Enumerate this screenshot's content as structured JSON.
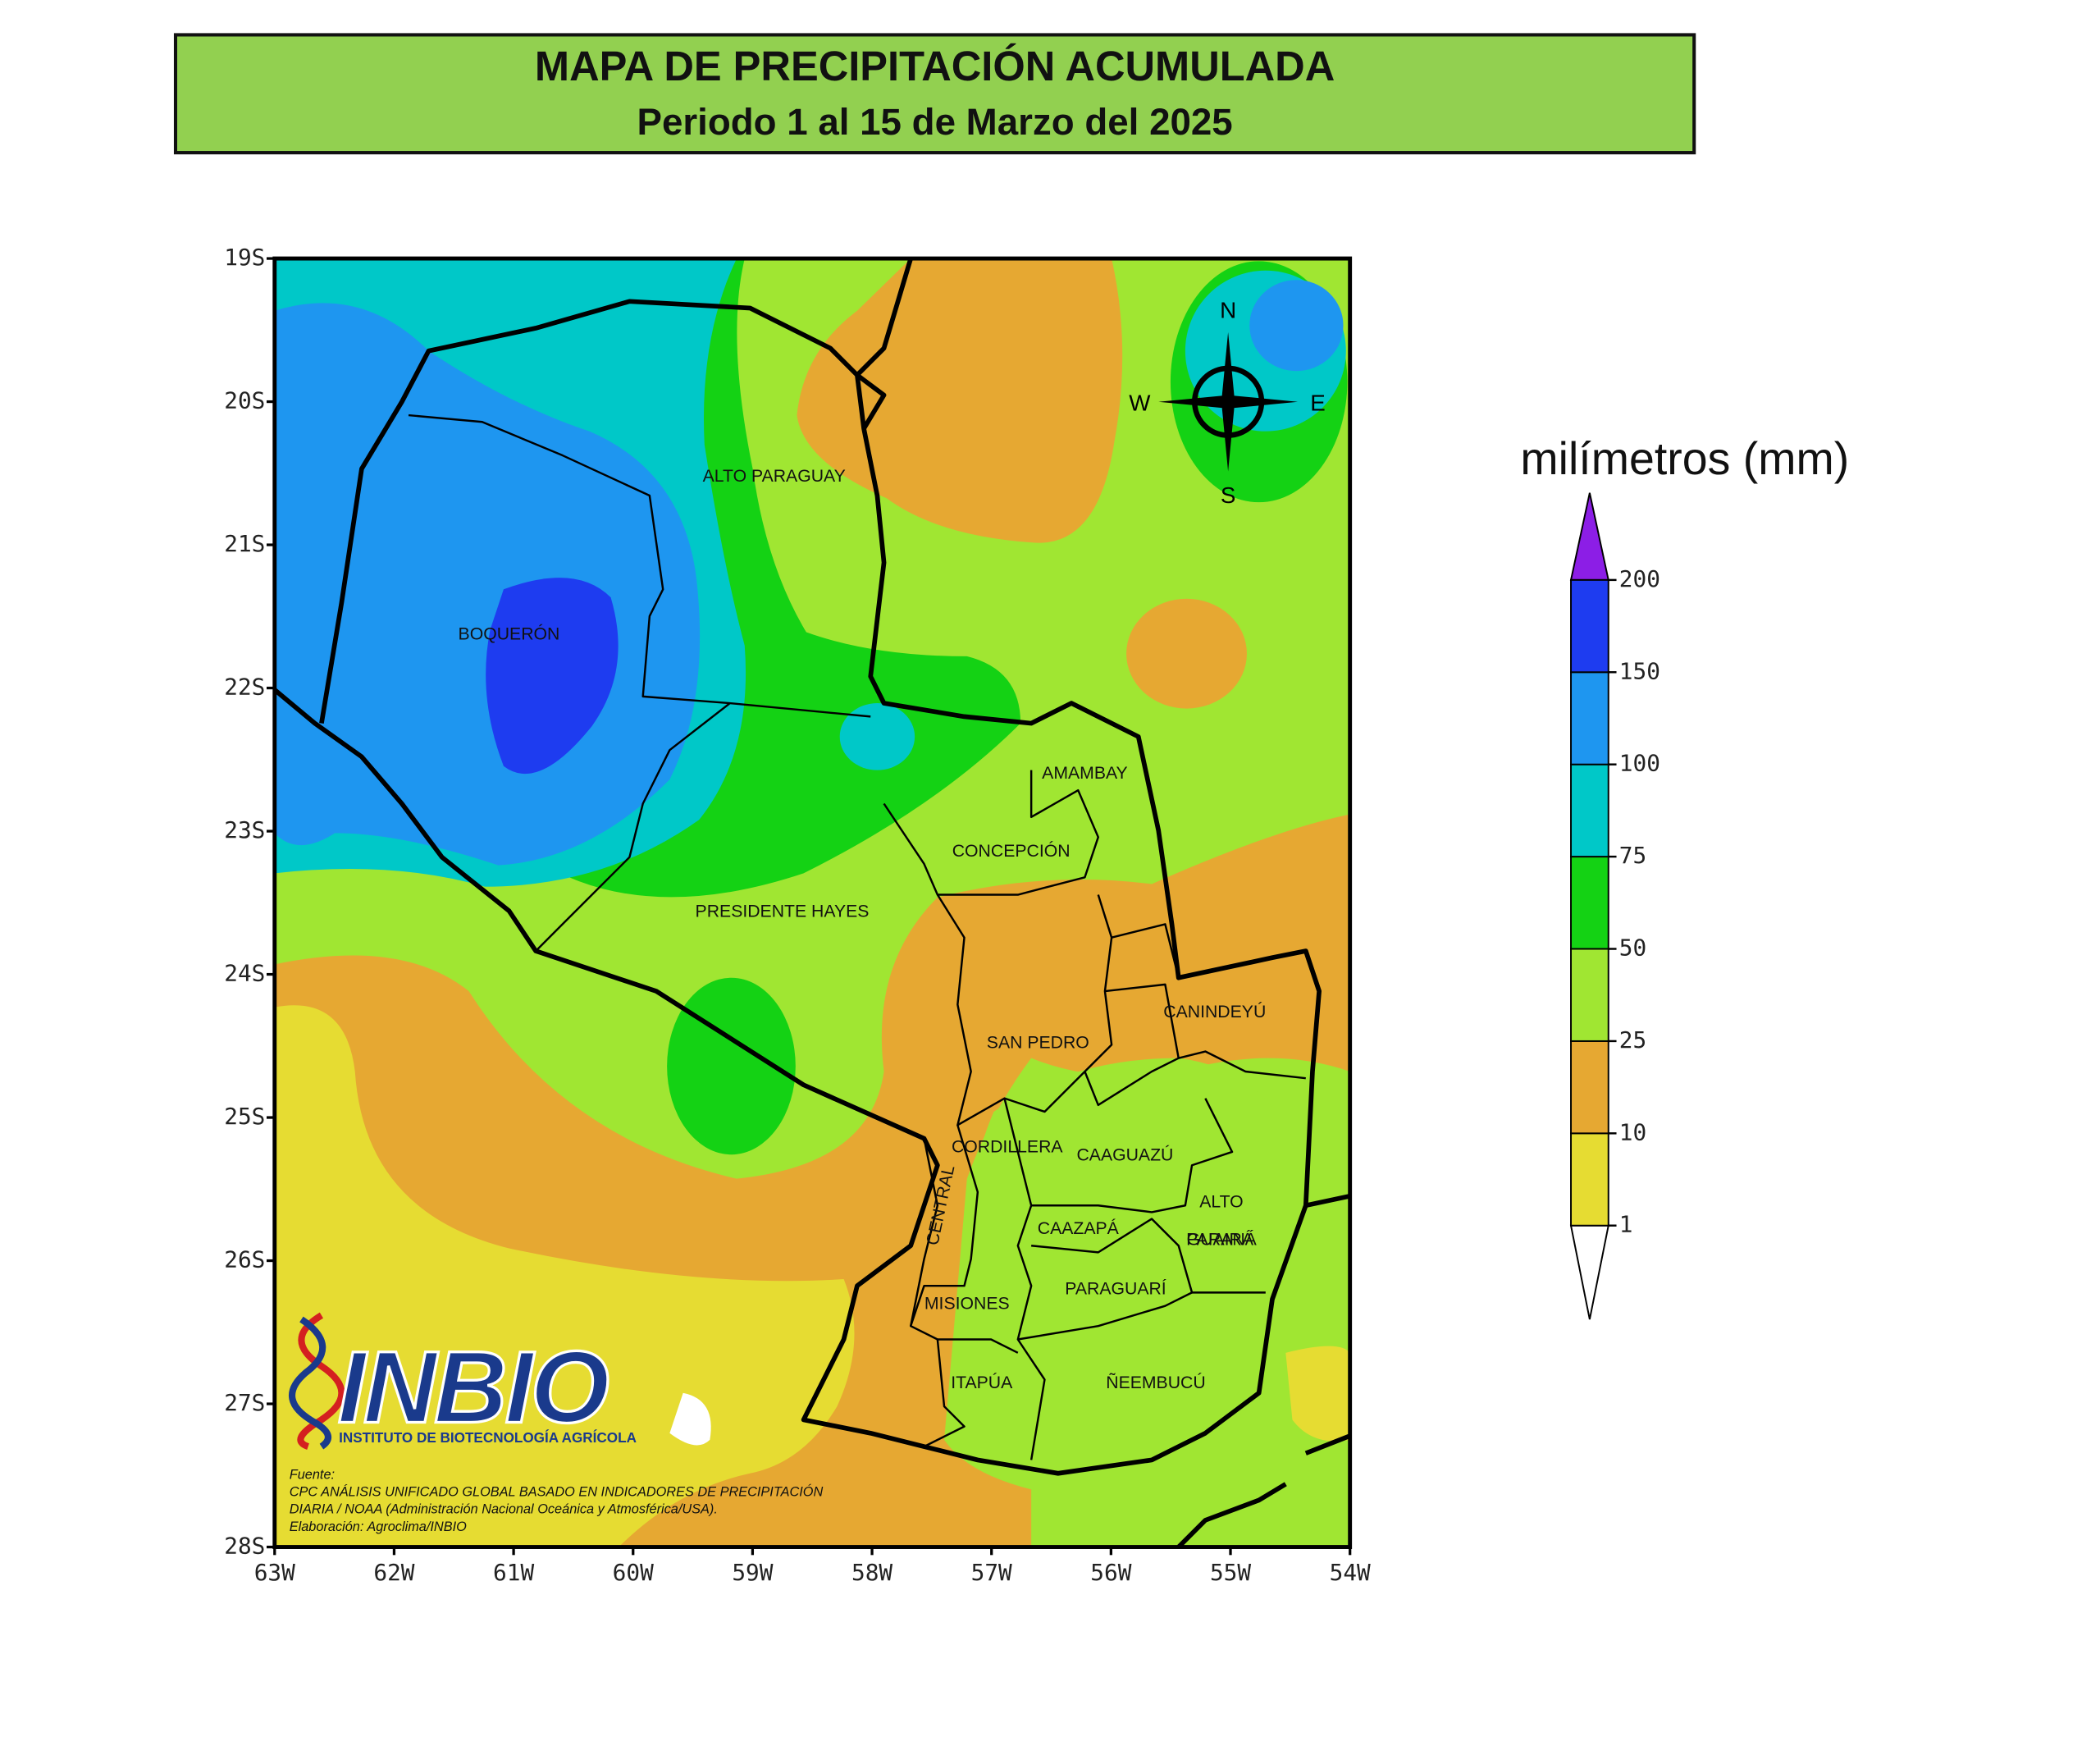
{
  "header": {
    "title": "MAPA DE PRECIPITACIÓN ACUMULADA",
    "subtitle": "Periodo 1 al 15 de Marzo del 2025"
  },
  "map": {
    "lat_ticks": [
      "19S",
      "20S",
      "21S",
      "22S",
      "23S",
      "24S",
      "25S",
      "26S",
      "27S",
      "28S"
    ],
    "lon_ticks": [
      "63W",
      "62W",
      "61W",
      "60W",
      "59W",
      "58W",
      "57W",
      "56W",
      "55W",
      "54W"
    ],
    "departments": [
      {
        "lines": [
          "ALTO PARAGUAY"
        ]
      },
      {
        "lines": [
          "BOQUERÓN"
        ]
      },
      {
        "lines": [
          "AMAMBAY"
        ]
      },
      {
        "lines": [
          "CONCEPCIÓN"
        ]
      },
      {
        "lines": [
          "PRESIDENTE HAYES"
        ]
      },
      {
        "lines": [
          "SAN PEDRO"
        ]
      },
      {
        "lines": [
          "CANINDEYÚ"
        ]
      },
      {
        "lines": [
          "CORDILLERA"
        ]
      },
      {
        "lines": [
          "CAAGUAZÚ"
        ]
      },
      {
        "lines": [
          "CENTRAL"
        ]
      },
      {
        "lines": [
          "ALTO",
          "PARANÁ"
        ]
      },
      {
        "lines": [
          "GUAIRÁ"
        ]
      },
      {
        "lines": [
          "CAAZAPÁ"
        ]
      },
      {
        "lines": [
          "PARAGUARÍ"
        ]
      },
      {
        "lines": [
          "MISIONES"
        ]
      },
      {
        "lines": [
          "ITAPÚA"
        ]
      },
      {
        "lines": [
          "ÑEEMBUCÚ"
        ]
      }
    ],
    "compass": {
      "north": "N",
      "east": "E",
      "south": "S",
      "west": "W"
    }
  },
  "legend": {
    "title": "milímetros (mm)",
    "levels": [
      1,
      10,
      25,
      50,
      75,
      100,
      150,
      200
    ],
    "band_colors": [
      "#e6dc32",
      "#e6a832",
      "#a0e632",
      "#14d214",
      "#00c8c8",
      "#1e96f0",
      "#1e3cf0"
    ],
    "below_color": "#ffffff",
    "above_color": "#8c1ee6"
  },
  "logo": {
    "name": "INBIO",
    "subtitle": "INSTITUTO DE BIOTECNOLOGÍA AGRÍCOLA"
  },
  "source": [
    "Fuente:",
    "CPC ANÁLISIS UNIFICADO GLOBAL BASADO EN INDICADORES DE PRECIPITACIÓN",
    "DIARIA / NOAA (Administración Nacional Oceánica y Atmosférica/USA).",
    "Elaboración: Agroclima/INBIO"
  ]
}
